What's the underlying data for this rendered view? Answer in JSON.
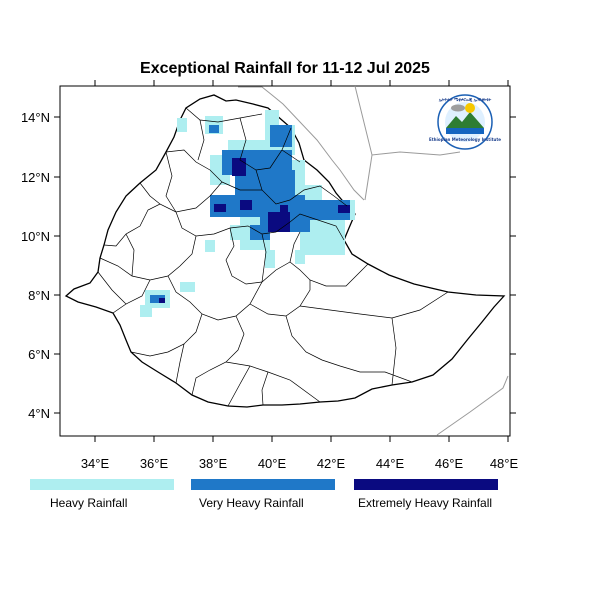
{
  "map": {
    "title": "Exceptional Rainfall for 11-12 Jul 2025",
    "x_ticks": [
      "34°E",
      "36°E",
      "38°E",
      "40°E",
      "42°E",
      "44°E",
      "46°E",
      "48°E"
    ],
    "y_ticks": [
      "14°N",
      "12°N",
      "10°N",
      "8°N",
      "6°N",
      "4°N"
    ],
    "extent": {
      "lon": [
        32.8,
        48.2
      ],
      "lat": [
        3.2,
        15.0
      ]
    }
  },
  "legend": {
    "items": [
      {
        "label": "Heavy Rainfall",
        "color": "#aeeef0"
      },
      {
        "label": "Very Heavy Rainfall",
        "color": "#1f78c8"
      },
      {
        "label": "Extremely Heavy Rainfall",
        "color": "#0a0a80"
      }
    ]
  },
  "logo": {
    "text_top": "ኢትዮጵያ ሜቲዎሮሎጂ ኢንስቲትዩት",
    "text_bottom": "Ethiopian Meteorology Institute"
  }
}
